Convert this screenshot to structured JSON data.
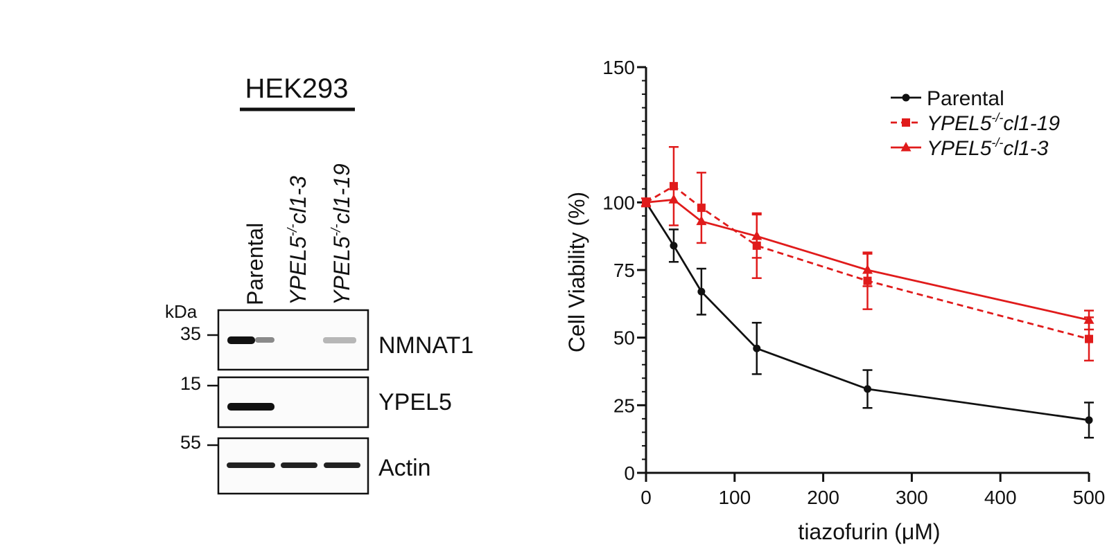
{
  "blot": {
    "cell_line": "HEK293",
    "kda_label": "kDa",
    "lanes": [
      {
        "main": "Parental",
        "sup": "",
        "tail": "",
        "italic": false
      },
      {
        "main": "YPEL5",
        "sup": "-/-",
        "tail": "cl1-3",
        "italic": true
      },
      {
        "main": "YPEL5",
        "sup": "-/-",
        "tail": "cl1-19",
        "italic": true
      }
    ],
    "panels": [
      {
        "protein": "NMNAT1",
        "marker": "35"
      },
      {
        "protein": "YPEL5",
        "marker": "15"
      },
      {
        "protein": "Actin",
        "marker": "55"
      }
    ]
  },
  "chart_data": {
    "type": "line",
    "xlabel": "tiazofurin (μM)",
    "ylabel": "Cell Viability (%)",
    "xlim": [
      0,
      500
    ],
    "ylim": [
      0,
      150
    ],
    "xticks": [
      "0",
      "100",
      "200",
      "300",
      "400",
      "500"
    ],
    "yticks": [
      "0",
      "25",
      "50",
      "75",
      "100",
      "150"
    ],
    "x": [
      0,
      31.25,
      62.5,
      125,
      250,
      500
    ],
    "series": [
      {
        "name": "Parental",
        "name_main": "Parental",
        "name_sup": "",
        "name_tail": "",
        "italic": false,
        "color": "#111111",
        "marker": "circle",
        "dashed": false,
        "values": [
          100,
          84,
          67,
          46,
          31,
          19.5
        ],
        "errors": [
          0,
          6,
          8.5,
          9.5,
          7,
          6.5
        ]
      },
      {
        "name": "YPEL5-/-cl1-19",
        "name_main": "YPEL5",
        "name_sup": "-/-",
        "name_tail": "cl1-19",
        "italic": true,
        "color": "#e01b1b",
        "marker": "square",
        "dashed": true,
        "values": [
          100,
          106,
          98,
          84,
          71,
          49.5
        ],
        "errors": [
          1.5,
          14.5,
          13,
          12,
          10.5,
          8
        ]
      },
      {
        "name": "YPEL5-/-cl1-3",
        "name_main": "YPEL5",
        "name_sup": "-/-",
        "name_tail": "cl1-3",
        "italic": true,
        "color": "#e01b1b",
        "marker": "triangle",
        "dashed": false,
        "values": [
          100,
          101,
          93,
          87.5,
          75,
          56.5
        ],
        "errors": [
          0,
          0,
          0,
          8,
          6,
          3.5
        ]
      }
    ]
  }
}
